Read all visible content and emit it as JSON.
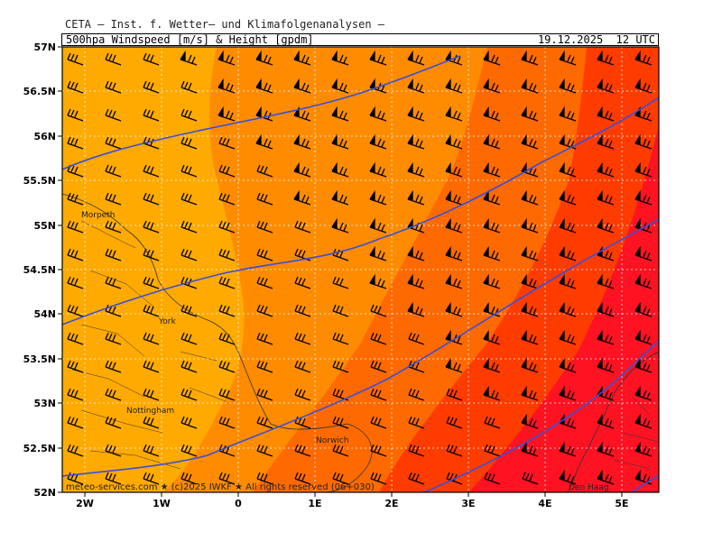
{
  "header": {
    "title": "CETA — Inst. f. Wetter— und Klimafolgenanalysen —",
    "variable": "500hpa_Windspeed_[m/s]_&_Height_[gpdm]",
    "valid_time": "19.12.2025  12 UTC"
  },
  "axes": {
    "lat_labels": [
      "57N",
      "56.5N",
      "56N",
      "55.5N",
      "55N",
      "54.5N",
      "54N",
      "53.5N",
      "53N",
      "52.5N",
      "52N"
    ],
    "lon_labels": [
      "2W",
      "1W",
      "0",
      "1E",
      "2E",
      "3E",
      "4E",
      "5E"
    ],
    "lat_range": [
      52,
      57
    ],
    "lon_range": [
      -2.3,
      5.5
    ],
    "grid": "dotted"
  },
  "places": {
    "morpeth": "Morpeth",
    "york": "York",
    "nottingham": "Nottingham",
    "norwich": "Norwich",
    "den_haag": "Den Haag"
  },
  "footer": {
    "credit": "meteo-services.com ★ (c)2025 IWKF ★ All rights reserved (06+030)"
  },
  "map_data": {
    "wind_color_bands": [
      "#ffaa00",
      "#ff8c00",
      "#ff6a00",
      "#ff3c00",
      "#ff0a28"
    ],
    "contour_color": "#3a4fd8",
    "wind_barbs": "westerly, strengthening toward the southeast"
  }
}
